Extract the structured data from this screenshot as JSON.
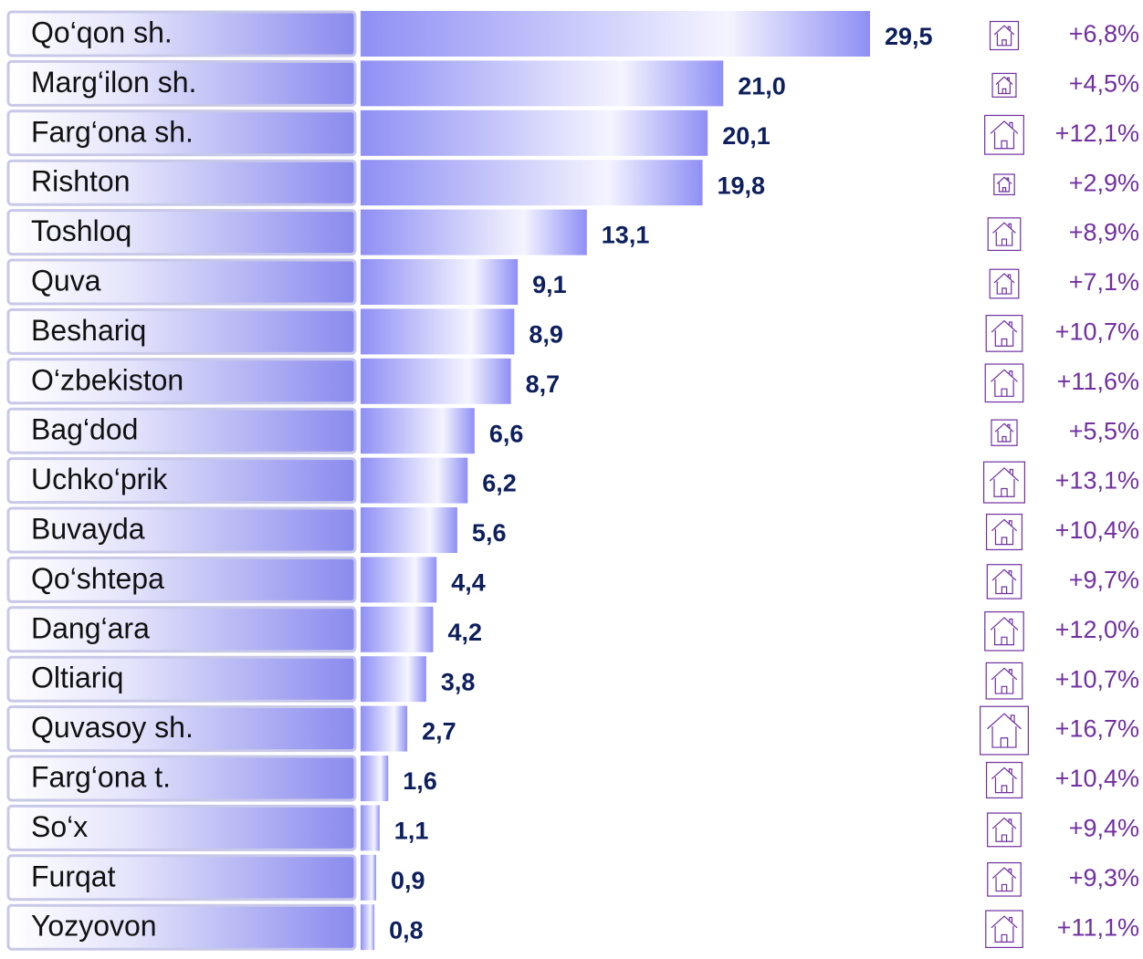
{
  "chart_data": {
    "type": "bar",
    "categories": [
      "Qo‘qon sh.",
      "Marg‘ilon sh.",
      "Farg‘ona sh.",
      "Rishton",
      "Toshloq",
      "Quva",
      "Beshariq",
      "O‘zbekiston",
      "Bag‘dod",
      "Uchko‘prik",
      "Buvayda",
      "Qo‘shtepa",
      "Dang‘ara",
      "Oltiariq",
      "Quvasoy sh.",
      "Farg‘ona t.",
      "So‘x",
      "Furqat",
      "Yozyovon"
    ],
    "series": [
      {
        "color": "#8f8ff5",
        "values": [
          29.5,
          21.0,
          20.1,
          19.8,
          13.1,
          9.1,
          8.9,
          8.7,
          6.6,
          6.2,
          5.6,
          4.4,
          4.2,
          3.8,
          2.7,
          1.6,
          1.1,
          0.9,
          0.8
        ],
        "value_labels": [
          "29,5",
          "21,0",
          "20,1",
          "19,8",
          "13,1",
          "9,1",
          "8,9",
          "8,7",
          "6,6",
          "6,2",
          "5,6",
          "4,4",
          "4,2",
          "3,8",
          "2,7",
          "1,6",
          "1,1",
          "0,9",
          "0,8"
        ]
      },
      {
        "color": "#7030a0",
        "values": [
          6.8,
          4.5,
          12.1,
          2.9,
          8.9,
          7.1,
          10.7,
          11.6,
          5.5,
          13.1,
          10.4,
          9.7,
          12.0,
          10.7,
          16.7,
          10.4,
          9.4,
          9.3,
          11.1
        ],
        "value_labels": [
          "+6,8%",
          "+4,5%",
          "+12,1%",
          "+2,9%",
          "+8,9%",
          "+7,1%",
          "+10,7%",
          "+11,6%",
          "+5,5%",
          "+13,1%",
          "+10,4%",
          "+9,7%",
          "+12,0%",
          "+10,7%",
          "+16,7%",
          "+10,4%",
          "+9,4%",
          "+9,3%",
          "+11,1%"
        ]
      }
    ]
  }
}
